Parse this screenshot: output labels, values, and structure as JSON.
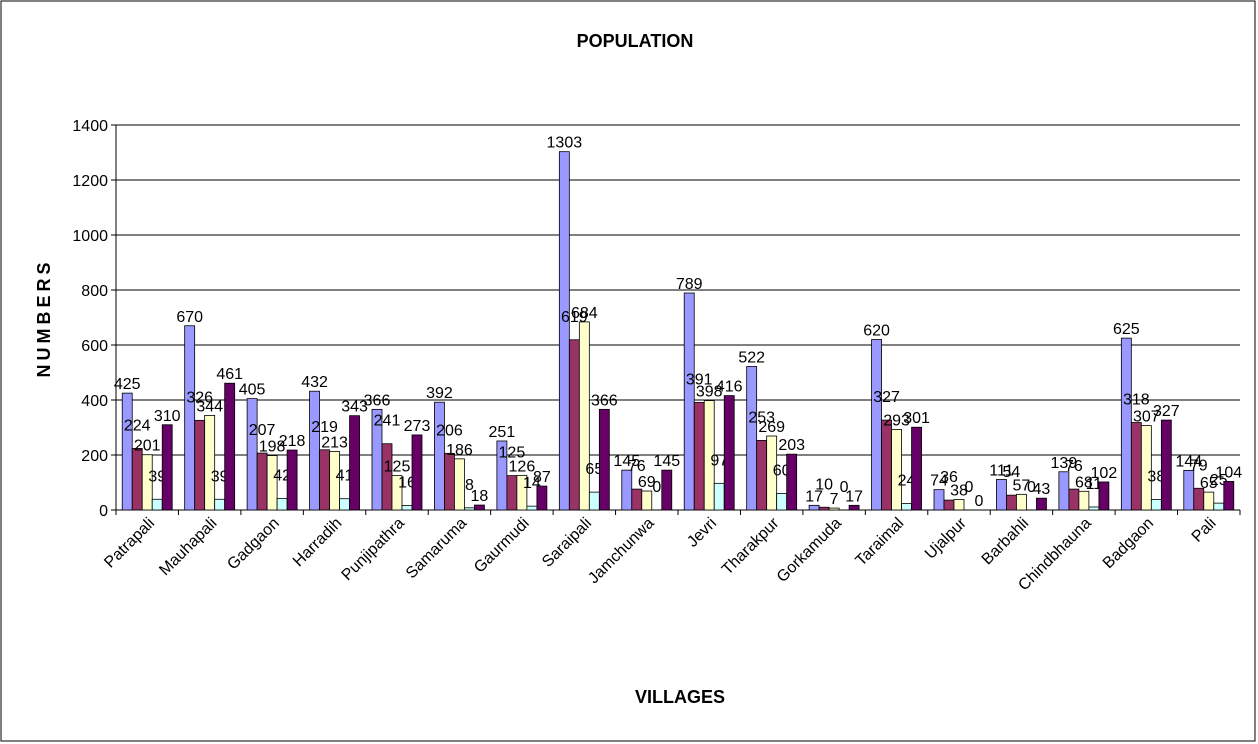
{
  "chart_data": {
    "type": "bar",
    "title": "POPULATION",
    "x_label": "VILLAGES",
    "y_label": "NUMBERS",
    "categories": [
      "Patrapali",
      "Mauhapali",
      "Gadgaon",
      "Harradih",
      "Punjipathra",
      "Samaruma",
      "Gaurmudi",
      "Saraipali",
      "Jamchunwa",
      "Jevri",
      "Tharakpur",
      "Gorkamuda",
      "Taraimal",
      "Ujalpur",
      "Barbahli",
      "Chindbhauna",
      "Badgaon",
      "Pali"
    ],
    "series": [
      {
        "color": "#9999ff",
        "values": [
          425,
          670,
          405,
          432,
          366,
          392,
          251,
          1303,
          145,
          789,
          522,
          17,
          620,
          74,
          111,
          139,
          625,
          144
        ]
      },
      {
        "color": "#993366",
        "values": [
          224,
          326,
          207,
          219,
          241,
          206,
          125,
          619,
          76,
          391,
          253,
          10,
          327,
          36,
          54,
          76,
          318,
          79
        ]
      },
      {
        "color": "#ffffcc",
        "values": [
          201,
          344,
          198,
          213,
          125,
          186,
          126,
          684,
          69,
          398,
          269,
          7,
          293,
          38,
          57,
          68,
          307,
          65
        ]
      },
      {
        "color": "#ccffff",
        "values": [
          39,
          39,
          42,
          41,
          16,
          8,
          14,
          65,
          0,
          97,
          60,
          0,
          24,
          0,
          0,
          11,
          38,
          25
        ]
      },
      {
        "color": "#660066",
        "values": [
          310,
          461,
          218,
          343,
          273,
          18,
          87,
          366,
          145,
          416,
          203,
          17,
          301,
          0,
          43,
          102,
          327,
          104
        ]
      }
    ],
    "ylim": [
      0,
      1400
    ],
    "yticks": [
      0,
      200,
      400,
      600,
      800,
      1000,
      1200,
      1400
    ],
    "grid": true
  }
}
